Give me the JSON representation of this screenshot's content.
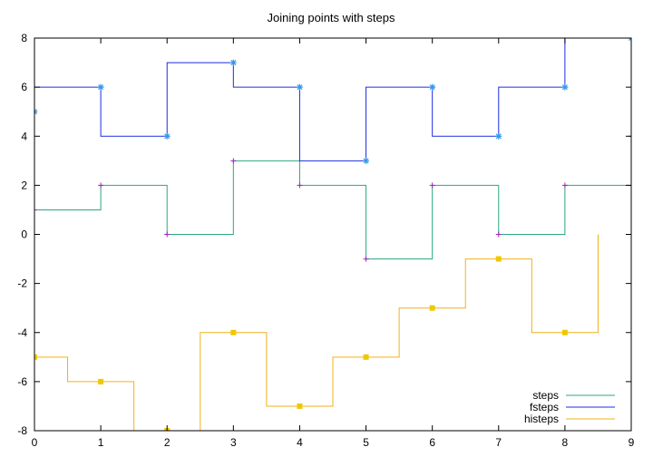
{
  "chart_data": {
    "type": "line",
    "title": "Joining points with steps",
    "xlabel": "",
    "ylabel": "",
    "xlim": [
      0,
      9
    ],
    "ylim": [
      -8,
      8
    ],
    "x_ticks": [
      0,
      1,
      2,
      3,
      4,
      5,
      6,
      7,
      8,
      9
    ],
    "y_ticks": [
      -8,
      -6,
      -4,
      -2,
      0,
      2,
      4,
      6,
      8
    ],
    "grid": false,
    "legend_position": "bottom-right",
    "series": [
      {
        "name": "steps",
        "style": "steps",
        "color": "#2aa882",
        "marker": "plus",
        "marker_color": "#a020c0",
        "x": [
          0,
          1,
          2,
          3,
          4,
          5,
          6,
          7,
          8,
          9
        ],
        "y": [
          1,
          2,
          0,
          3,
          2,
          -1,
          2,
          0,
          2,
          4
        ]
      },
      {
        "name": "fsteps",
        "style": "fsteps",
        "color": "#1c2ce0",
        "marker": "star",
        "marker_color": "#3399ee",
        "x": [
          0,
          1,
          2,
          3,
          4,
          5,
          6,
          7,
          8,
          9
        ],
        "y": [
          5,
          6,
          4,
          7,
          6,
          3,
          6,
          4,
          6,
          8
        ]
      },
      {
        "name": "histeps",
        "style": "histeps",
        "color": "#f2b01e",
        "marker": "square",
        "marker_color": "#f0c800",
        "x": [
          0,
          1,
          2,
          3,
          4,
          5,
          6,
          7,
          8
        ],
        "y": [
          -5,
          -6,
          -8,
          -4,
          -7,
          -5,
          -3,
          -1,
          -4
        ]
      }
    ]
  }
}
